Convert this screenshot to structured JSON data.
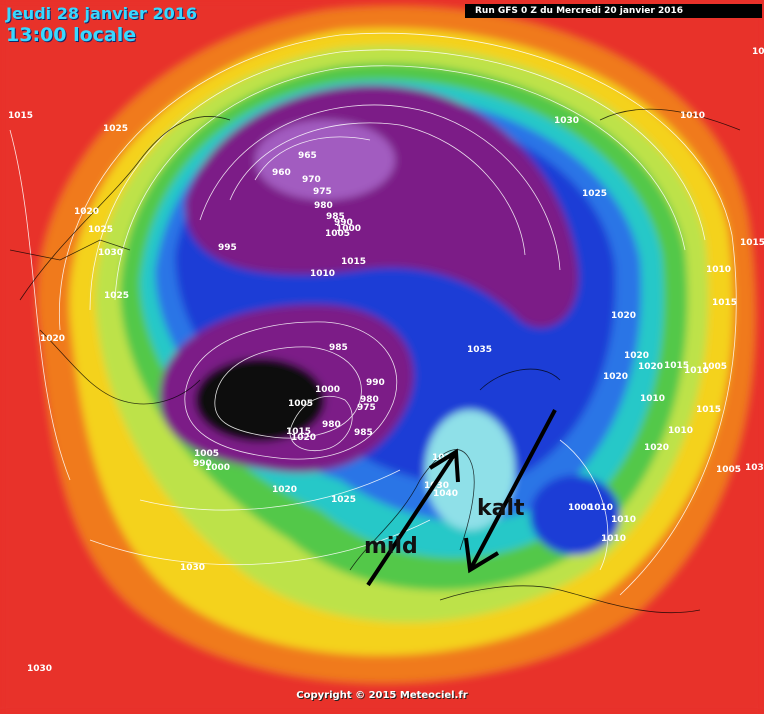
{
  "header": {
    "date": "Jeudi 28 janvier 2016",
    "time": "13:00 locale",
    "run": "Run GFS 0 Z du Mercredi 20 janvier 2016"
  },
  "copyright": "Copyright © 2015 Meteociel.fr",
  "annotations": {
    "mild": "mild",
    "kalt": "kalt"
  },
  "isobar_labels": [
    "1015",
    "1025",
    "1020",
    "1025",
    "1030",
    "1025",
    "1020",
    "995",
    "965",
    "960",
    "970",
    "975",
    "980",
    "985",
    "990",
    "1000",
    "1005",
    "1010",
    "1015",
    "985",
    "990",
    "975",
    "980",
    "1000",
    "1005",
    "1015",
    "1020",
    "980",
    "985",
    "1005",
    "990",
    "1000",
    "1020",
    "1025",
    "1030",
    "1035",
    "1030",
    "1040",
    "1030",
    "1025",
    "1030",
    "1010",
    "1010",
    "1010",
    "1015",
    "1020",
    "1020",
    "1020",
    "1020",
    "1015",
    "1010",
    "1005",
    "1020",
    "1010",
    "1015",
    "1015",
    "1010",
    "1000",
    "1010",
    "1010",
    "1010",
    "1005",
    "1030",
    "1030",
    "1015"
  ],
  "colors": {
    "low_core": "#111111",
    "low": "#7b1f87",
    "mid_low": "#1d3ed6",
    "neutral": "#28c8c8",
    "high": "#f4d21a",
    "very_high": "#e8302a"
  }
}
